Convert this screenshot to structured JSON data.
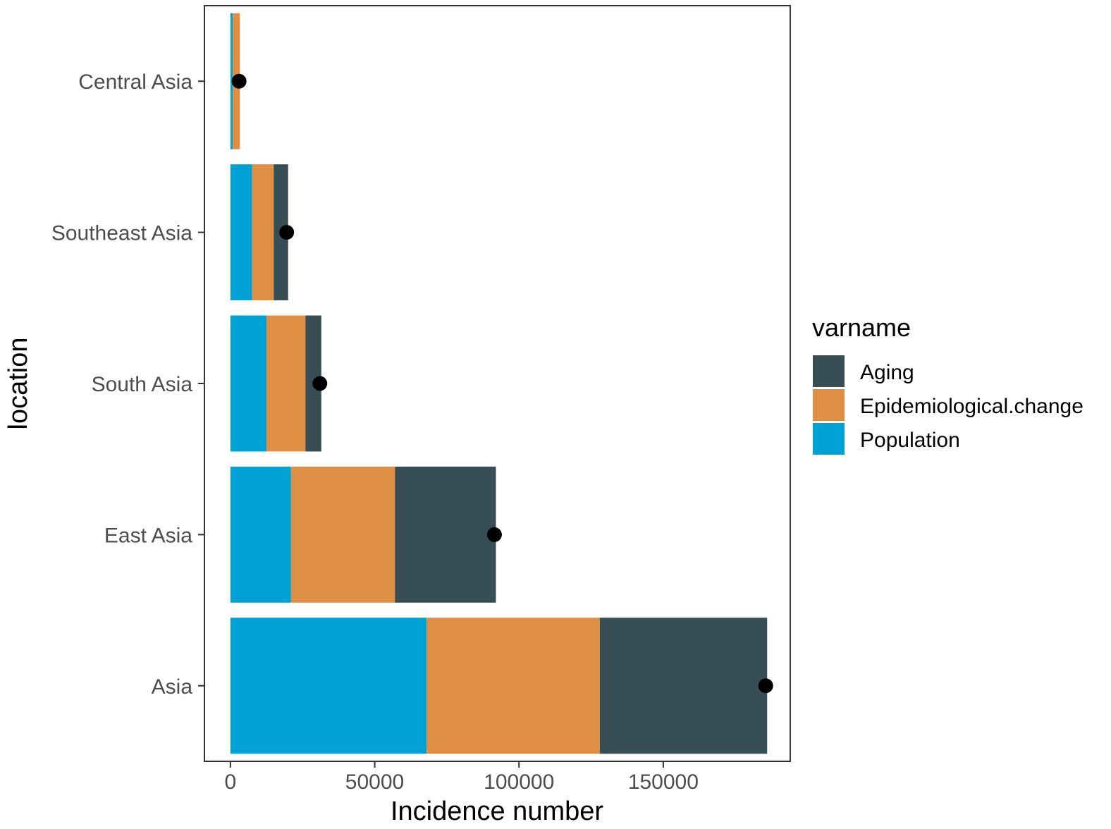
{
  "chart_data": {
    "type": "bar",
    "orientation": "horizontal",
    "stacked": true,
    "categories": [
      "Central Asia",
      "Southeast Asia",
      "South Asia",
      "East Asia",
      "Asia"
    ],
    "series": [
      {
        "name": "Population",
        "color": "#00a1d5",
        "values": [
          800,
          7500,
          12500,
          21000,
          68000
        ]
      },
      {
        "name": "Epidemiological.change",
        "color": "#df8f44",
        "values": [
          2500,
          7500,
          13500,
          36000,
          60000
        ]
      },
      {
        "name": "Aging",
        "color": "#374e55",
        "values": [
          0,
          5000,
          5500,
          35000,
          58000
        ]
      }
    ],
    "net_change": [
      3000,
      19500,
      31000,
      91500,
      185500
    ],
    "xlabel": "Incidence number",
    "ylabel": "location",
    "xlim": [
      -9000,
      194000
    ],
    "xticks": [
      0,
      50000,
      100000,
      150000
    ],
    "xtick_labels": [
      "0",
      "50000",
      "100000",
      "150000"
    ],
    "legend": {
      "title": "varname",
      "position": "right",
      "order": [
        "Aging",
        "Epidemiological.change",
        "Population"
      ]
    },
    "grid": false
  }
}
